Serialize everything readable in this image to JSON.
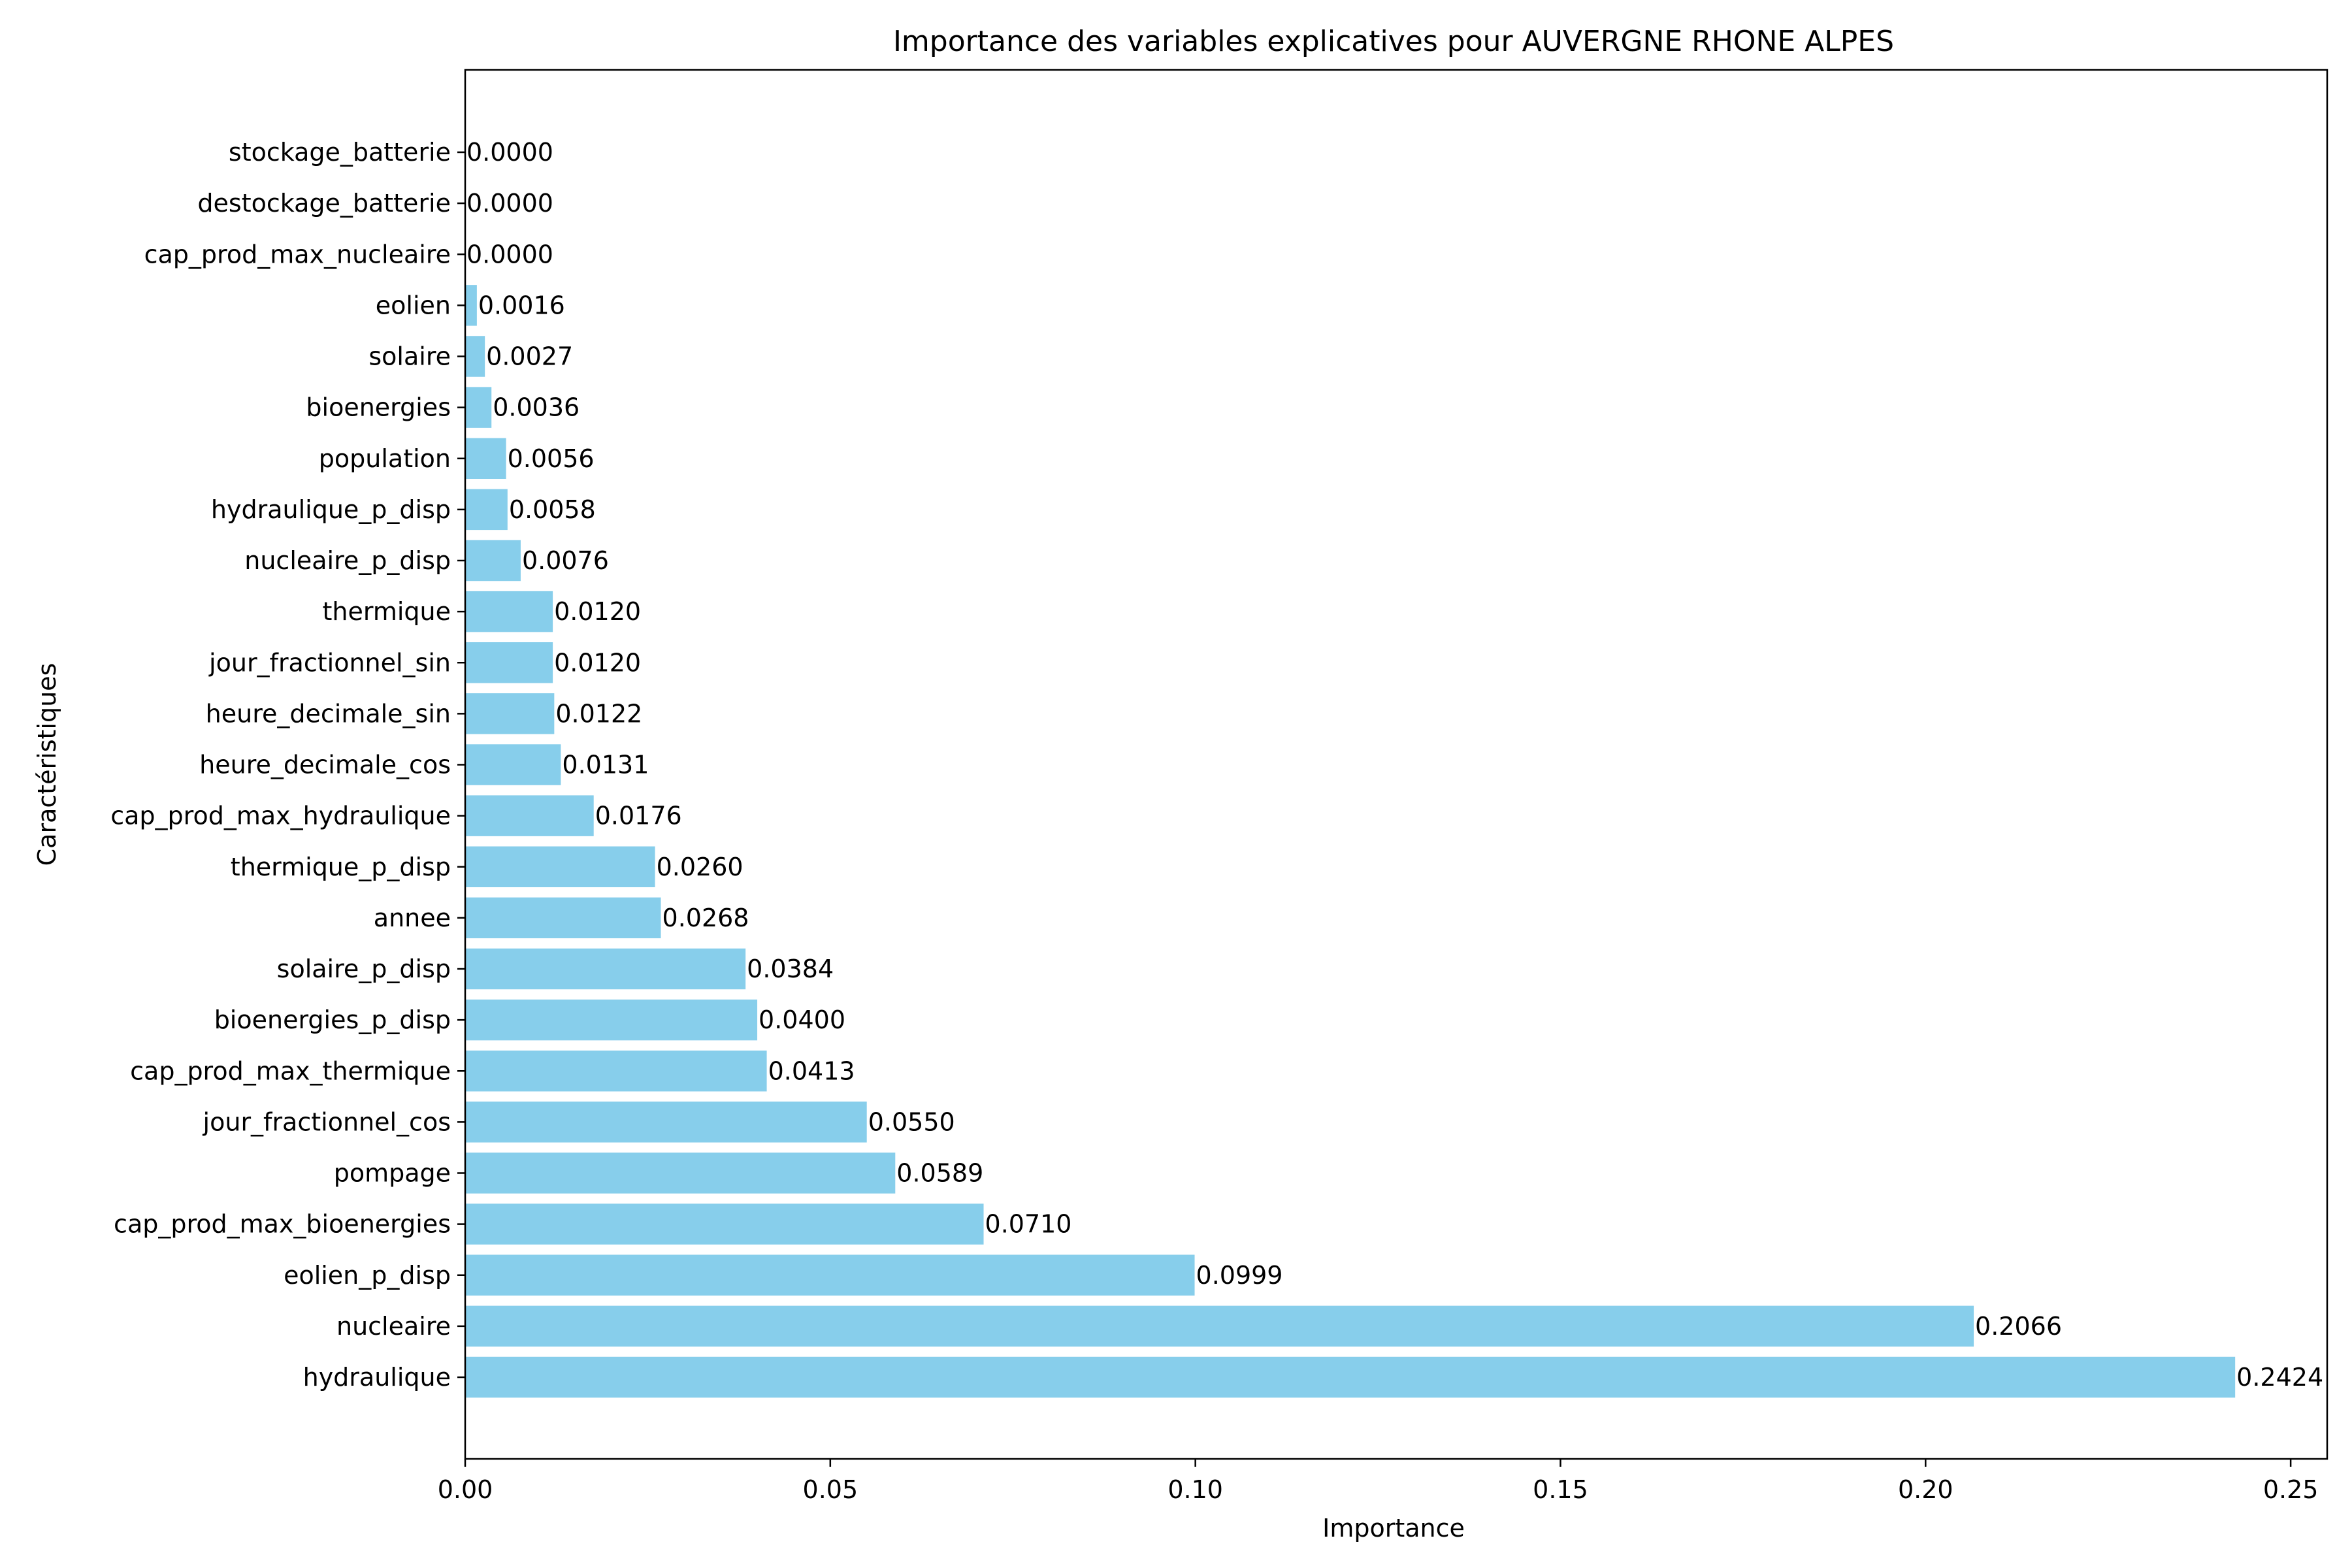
{
  "chart_data": {
    "type": "bar",
    "orientation": "horizontal",
    "title": "Importance des variables explicatives pour AUVERGNE RHONE ALPES",
    "xlabel": "Importance",
    "ylabel": "Caractéristiques",
    "xlim": [
      0,
      0.255
    ],
    "xticks": [
      0.0,
      0.05,
      0.1,
      0.15,
      0.2,
      0.25
    ],
    "xtick_labels": [
      "0.00",
      "0.05",
      "0.10",
      "0.15",
      "0.20",
      "0.25"
    ],
    "grid": false,
    "bar_color": "#87ceeb",
    "categories": [
      "hydraulique",
      "nucleaire",
      "eolien_p_disp",
      "cap_prod_max_bioenergies",
      "pompage",
      "jour_fractionnel_cos",
      "cap_prod_max_thermique",
      "bioenergies_p_disp",
      "solaire_p_disp",
      "annee",
      "thermique_p_disp",
      "cap_prod_max_hydraulique",
      "heure_decimale_cos",
      "heure_decimale_sin",
      "jour_fractionnel_sin",
      "thermique",
      "nucleaire_p_disp",
      "hydraulique_p_disp",
      "population",
      "bioenergies",
      "solaire",
      "eolien",
      "cap_prod_max_nucleaire",
      "destockage_batterie",
      "stockage_batterie"
    ],
    "values": [
      0.2424,
      0.2066,
      0.0999,
      0.071,
      0.0589,
      0.055,
      0.0413,
      0.04,
      0.0384,
      0.0268,
      0.026,
      0.0176,
      0.0131,
      0.0122,
      0.012,
      0.012,
      0.0076,
      0.0058,
      0.0056,
      0.0036,
      0.0027,
      0.0016,
      0.0,
      0.0,
      0.0
    ],
    "value_labels": [
      "0.2424",
      "0.2066",
      "0.0999",
      "0.0710",
      "0.0589",
      "0.0550",
      "0.0413",
      "0.0400",
      "0.0384",
      "0.0268",
      "0.0260",
      "0.0176",
      "0.0131",
      "0.0122",
      "0.0120",
      "0.0120",
      "0.0076",
      "0.0058",
      "0.0056",
      "0.0036",
      "0.0027",
      "0.0016",
      "0.0000",
      "0.0000",
      "0.0000"
    ]
  }
}
